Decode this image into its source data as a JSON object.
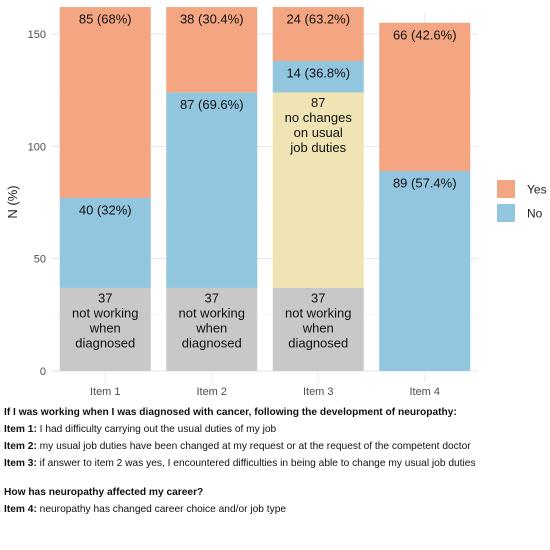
{
  "chart_data": {
    "type": "bar",
    "stacked": true,
    "categories": [
      "Item 1",
      "Item 2",
      "Item 3",
      "Item 4"
    ],
    "ylabel": "N (%)",
    "xlabel": "",
    "ylim": [
      0,
      155
    ],
    "yticks": [
      0,
      50,
      100,
      150
    ],
    "grid": true,
    "legend_position": "right",
    "legend": [
      {
        "name": "Yes",
        "color": "#F4A582"
      },
      {
        "name": "No",
        "color": "#92C5DE"
      }
    ],
    "bars": [
      {
        "category": "Item 1",
        "segments": [
          {
            "value": 37,
            "color": "#C8C8C8",
            "label": [
              "37",
              "not working",
              "when",
              "diagnosed"
            ]
          },
          {
            "value": 40,
            "color": "#92C5DE",
            "label": [
              "40 (32%)"
            ]
          },
          {
            "value": 85,
            "color": "#F4A582",
            "label": [
              "85 (68%)"
            ]
          }
        ]
      },
      {
        "category": "Item 2",
        "segments": [
          {
            "value": 37,
            "color": "#C8C8C8",
            "label": [
              "37",
              "not working",
              "when",
              "diagnosed"
            ]
          },
          {
            "value": 87,
            "color": "#92C5DE",
            "label": [
              "87 (69.6%)"
            ]
          },
          {
            "value": 38,
            "color": "#F4A582",
            "label": [
              "38 (30.4%)"
            ]
          }
        ]
      },
      {
        "category": "Item 3",
        "segments": [
          {
            "value": 37,
            "color": "#C8C8C8",
            "label": [
              "37",
              "not working",
              "when",
              "diagnosed"
            ]
          },
          {
            "value": 87,
            "color": "#F0E4B4",
            "label": [
              "87",
              "no changes",
              "on usual",
              "job duties"
            ]
          },
          {
            "value": 14,
            "color": "#92C5DE",
            "label": [
              "14 (36.8%)"
            ]
          },
          {
            "value": 24,
            "color": "#F4A582",
            "label": [
              "24 (63.2%)"
            ]
          }
        ]
      },
      {
        "category": "Item 4",
        "segments": [
          {
            "value": 89,
            "color": "#92C5DE",
            "label": [
              "89 (57.4%)"
            ]
          },
          {
            "value": 66,
            "color": "#F4A582",
            "label": [
              "66 (42.6%)"
            ]
          }
        ]
      }
    ]
  },
  "notes": {
    "section1_heading": "If I was working when I was diagnosed with cancer, following the development of neuropathy:",
    "items1": [
      {
        "key": "Item 1:",
        "text": " I had difficulty carrying out the usual duties of my job"
      },
      {
        "key": "Item 2:",
        "text": " my usual job duties have been changed at my request or at the request of the competent doctor"
      },
      {
        "key": "Item 3:",
        "text": " if answer to item 2 was yes, I encountered difficulties in being able to change my usual job duties"
      }
    ],
    "section2_heading": "How has neuropathy affected my career?",
    "items2": [
      {
        "key": "Item 4:",
        "text": " neuropathy has changed career choice and/or job type"
      }
    ]
  }
}
